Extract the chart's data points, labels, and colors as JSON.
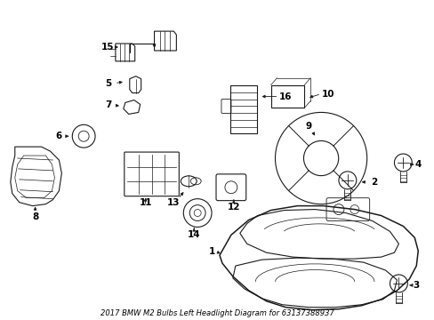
{
  "title": "2017 BMW M2 Bulbs Left Headlight Diagram for 63137388937",
  "bg_color": "#ffffff",
  "line_color": "#1a1a1a",
  "text_color": "#000000",
  "fig_width": 4.89,
  "fig_height": 3.6,
  "dpi": 100,
  "parts": [
    {
      "id": "1"
    },
    {
      "id": "2"
    },
    {
      "id": "3"
    },
    {
      "id": "4"
    },
    {
      "id": "5"
    },
    {
      "id": "6"
    },
    {
      "id": "7"
    },
    {
      "id": "8"
    },
    {
      "id": "9"
    },
    {
      "id": "10"
    },
    {
      "id": "11"
    },
    {
      "id": "12"
    },
    {
      "id": "13"
    },
    {
      "id": "14"
    },
    {
      "id": "15"
    },
    {
      "id": "16"
    }
  ]
}
